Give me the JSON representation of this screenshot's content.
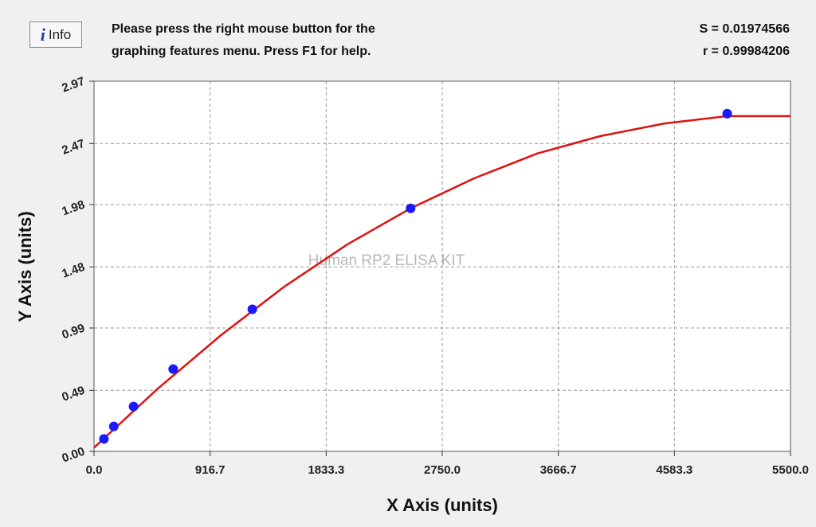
{
  "chart_data": {
    "type": "scatter",
    "info_button": "Info",
    "message": [
      "Please press the right mouse button for the",
      "graphing features menu.  Press F1 for help."
    ],
    "stats": [
      "S = 0.01974566",
      "r = 0.99984206"
    ],
    "watermark": "Human RP2 ELISA KIT",
    "x_label": "X Axis (units)",
    "y_label": "Y Axis (units)",
    "xlim": [
      0,
      5500
    ],
    "ylim": [
      0,
      2.97
    ],
    "xticks": [
      {
        "value": 0,
        "label": "0.0"
      },
      916.7,
      1833.3,
      {
        "value": 2750,
        "label": "2750.0"
      },
      3666.7,
      4583.3,
      {
        "value": 5500,
        "label": "5500.0"
      }
    ],
    "yticks": [
      {
        "value": 0,
        "label": "0.00"
      },
      0.49,
      0.99,
      1.48,
      1.98,
      2.47,
      2.97
    ],
    "grid": true,
    "points": {
      "color": "#1a1aff",
      "x": [
        78,
        156,
        312,
        625,
        1250,
        2500,
        5000
      ],
      "y": [
        0.1,
        0.2,
        0.36,
        0.66,
        1.14,
        1.95,
        2.71
      ]
    },
    "curve": {
      "color": "#e01010",
      "x": [
        0,
        500,
        1000,
        1500,
        2000,
        2500,
        3000,
        3500,
        4000,
        4500,
        5000,
        5500
      ],
      "y": [
        0.03,
        0.5,
        0.93,
        1.32,
        1.66,
        1.95,
        2.19,
        2.39,
        2.53,
        2.63,
        2.69,
        2.69
      ]
    }
  }
}
